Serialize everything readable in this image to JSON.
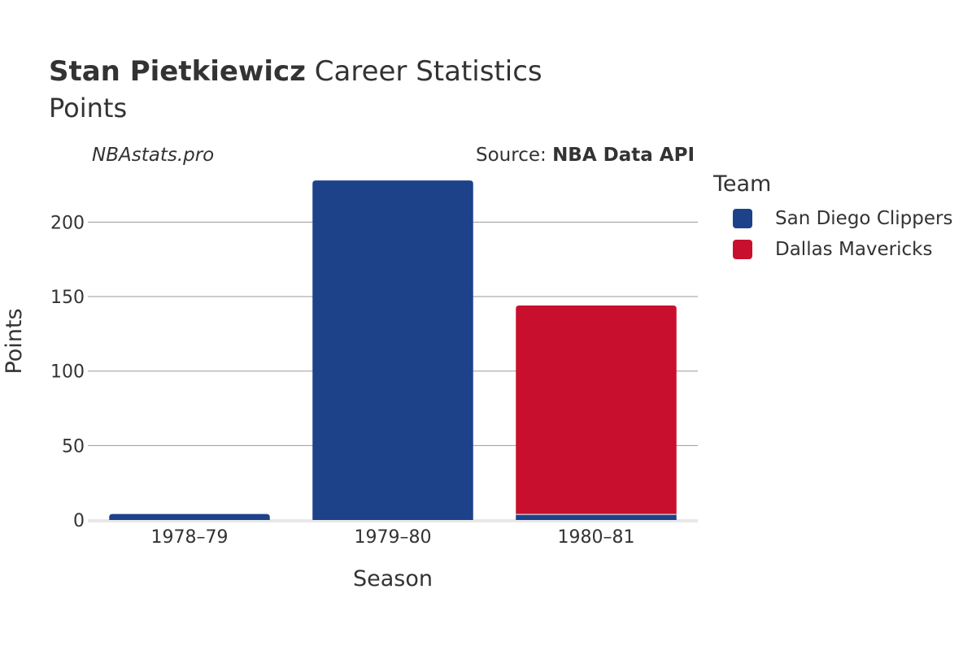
{
  "header": {
    "title_bold": "Stan Pietkiewicz",
    "title_rest": "Career Statistics",
    "subtitle": "Points",
    "watermark": "NBAstats.pro",
    "source_label": "Source:",
    "source_name": "NBA Data API"
  },
  "legend": {
    "title": "Team",
    "items": [
      {
        "label": "San Diego Clippers",
        "color": "#1d428a"
      },
      {
        "label": "Dallas Mavericks",
        "color": "#c8102e"
      }
    ]
  },
  "chart_data": {
    "type": "bar",
    "stacked": true,
    "xlabel": "Season",
    "ylabel": "Points",
    "categories": [
      "1978–79",
      "1979–80",
      "1980–81"
    ],
    "series": [
      {
        "name": "San Diego Clippers",
        "color": "#1d428a",
        "values": [
          4,
          228,
          4
        ]
      },
      {
        "name": "Dallas Mavericks",
        "color": "#c8102e",
        "values": [
          0,
          0,
          140
        ]
      }
    ],
    "ylim": [
      0,
      230
    ],
    "yticks": [
      0,
      50,
      100,
      150,
      200
    ],
    "grid": true,
    "legend_position": "right"
  }
}
